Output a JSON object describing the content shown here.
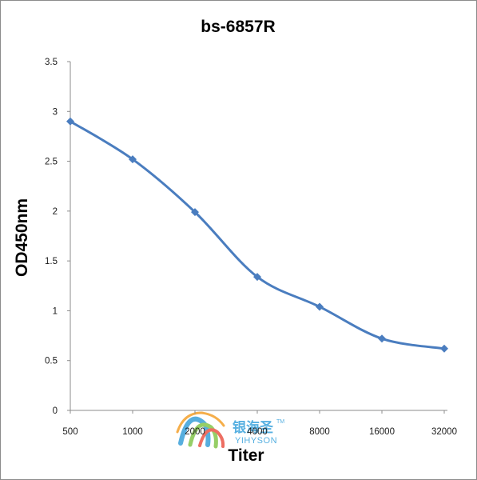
{
  "chart_data": {
    "type": "line",
    "title": "bs-6857R",
    "xlabel": "Titer",
    "ylabel": "OD450nm",
    "categories": [
      "500",
      "1000",
      "2000",
      "4000",
      "8000",
      "16000",
      "32000"
    ],
    "series": [
      {
        "values": [
          2.9,
          2.52,
          1.99,
          1.34,
          1.04,
          0.72,
          0.62
        ],
        "color": "#4a7dbf",
        "marker": "diamond"
      }
    ],
    "ylim": [
      0,
      3.5
    ],
    "yticks": [
      "0",
      "0.5",
      "1",
      "1.5",
      "2",
      "2.5",
      "3",
      "3.5"
    ],
    "grid": false,
    "legend": "none",
    "smooth": true
  },
  "watermark": {
    "brand_cn": "银海圣",
    "brand_en": "YIHYSON",
    "trademark": "TM",
    "logo_colors": [
      "#2e9ad6",
      "#7cc242",
      "#e94b3c",
      "#f39a1e"
    ]
  }
}
